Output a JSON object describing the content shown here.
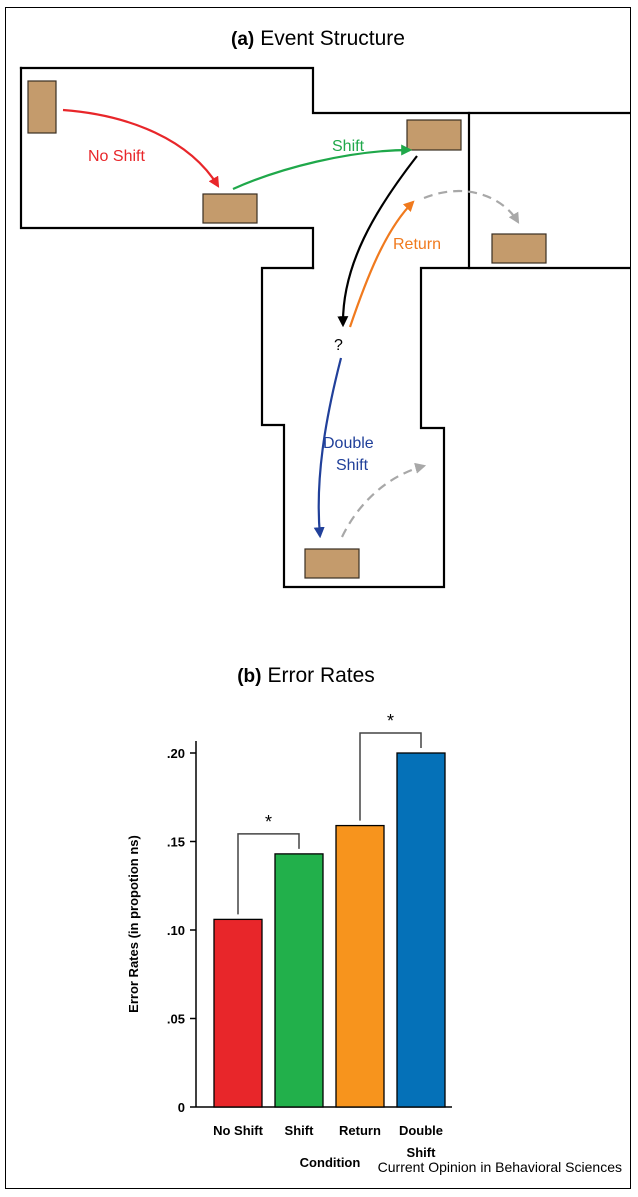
{
  "panel_a": {
    "title_prefix": "(a)",
    "title_text": "Event Structure",
    "labels": {
      "no_shift": "No Shift",
      "shift": "Shift",
      "return": "Return",
      "question": "?",
      "double_line1": "Double",
      "double_line2": "Shift"
    },
    "colors": {
      "no_shift": "#e8262a",
      "shift": "#1fa84a",
      "return": "#f07a1e",
      "double_shift": "#21409a",
      "dashed": "#a8a8a8",
      "box": "#c49b6c"
    }
  },
  "panel_b": {
    "title_prefix": "(b)",
    "title_text": "Error Rates"
  },
  "chart_data": {
    "type": "bar",
    "title": "Error Rates",
    "categories": [
      "No Shift",
      "Shift",
      "Return",
      "Double Shift"
    ],
    "category_labels": [
      [
        "No Shift"
      ],
      [
        "Shift"
      ],
      [
        "Return"
      ],
      [
        "Double",
        "Shift"
      ]
    ],
    "values": [
      0.106,
      0.143,
      0.159,
      0.2
    ],
    "colors": [
      "#e8262a",
      "#22b04b",
      "#f7941d",
      "#0571b8"
    ],
    "ylim": [
      0,
      0.2
    ],
    "yticks": [
      0,
      0.05,
      0.1,
      0.15,
      0.2
    ],
    "ytick_labels": [
      "0",
      ".05",
      ".10",
      ".15",
      ".20"
    ],
    "xlabel": "Condition",
    "ylabel": "Error Rates (in propotion ns)",
    "significance": [
      {
        "pair": [
          0,
          1
        ],
        "label": "*"
      },
      {
        "pair": [
          2,
          3
        ],
        "label": "*"
      }
    ],
    "grid": false
  },
  "credit": "Current Opinion in Behavioral Sciences"
}
